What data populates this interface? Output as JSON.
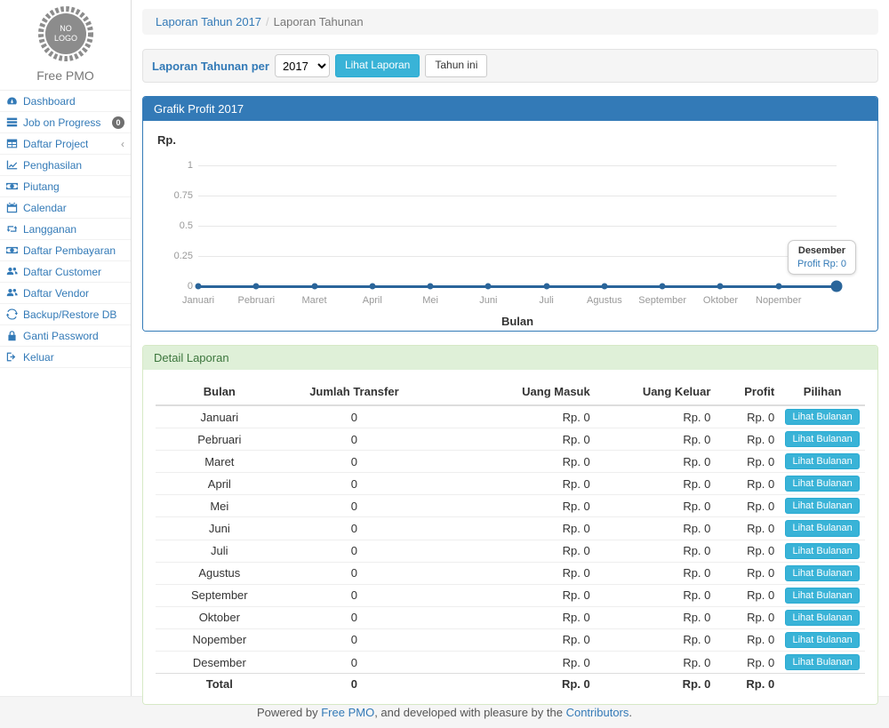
{
  "colors": {
    "accent": "#337ab7",
    "info_button": "#39b3d7",
    "chart_line": "#2a659a",
    "success_bg": "#dff0d8",
    "success_text": "#3c763d"
  },
  "sidebar": {
    "logo_line1": "NO",
    "logo_line2": "LOGO",
    "brand": "Free PMO",
    "items": [
      {
        "id": "dashboard",
        "label": "Dashboard",
        "icon": "dashboard-icon"
      },
      {
        "id": "job-on-progress",
        "label": "Job on Progress",
        "icon": "tasks-icon",
        "badge": "0"
      },
      {
        "id": "daftar-project",
        "label": "Daftar Project",
        "icon": "table-icon",
        "caret": "‹"
      },
      {
        "id": "penghasilan",
        "label": "Penghasilan",
        "icon": "line-chart-icon"
      },
      {
        "id": "piutang",
        "label": "Piutang",
        "icon": "money-icon"
      },
      {
        "id": "calendar",
        "label": "Calendar",
        "icon": "calendar-icon"
      },
      {
        "id": "langganan",
        "label": "Langganan",
        "icon": "retweet-icon"
      },
      {
        "id": "daftar-pembayaran",
        "label": "Daftar Pembayaran",
        "icon": "money-icon"
      },
      {
        "id": "daftar-customer",
        "label": "Daftar Customer",
        "icon": "users-icon"
      },
      {
        "id": "daftar-vendor",
        "label": "Daftar Vendor",
        "icon": "users-icon"
      },
      {
        "id": "backup-restore-db",
        "label": "Backup/Restore DB",
        "icon": "refresh-icon"
      },
      {
        "id": "ganti-password",
        "label": "Ganti Password",
        "icon": "lock-icon"
      },
      {
        "id": "keluar",
        "label": "Keluar",
        "icon": "sign-out-icon"
      }
    ]
  },
  "breadcrumb": {
    "link": "Laporan Tahun 2017",
    "separator": "/",
    "current": "Laporan Tahunan"
  },
  "filter_bar": {
    "label": "Laporan Tahunan per",
    "year_value": "2017",
    "submit_label": "Lihat Laporan",
    "this_year_label": "Tahun ini"
  },
  "chart_panel": {
    "title": "Grafik Profit 2017"
  },
  "chart_data": {
    "type": "line",
    "title": "Grafik Profit 2017",
    "xlabel": "Bulan",
    "ylabel": "Rp.",
    "categories": [
      "Januari",
      "Pebruari",
      "Maret",
      "April",
      "Mei",
      "Juni",
      "Juli",
      "Agustus",
      "September",
      "Oktober",
      "Nopember",
      "Desember"
    ],
    "x_labels_shown": [
      "Januari",
      "Pebruari",
      "Maret",
      "April",
      "Mei",
      "Juni",
      "Juli",
      "Agustus",
      "September",
      "Oktober",
      "Nopember"
    ],
    "series": [
      {
        "name": "Profit",
        "values": [
          0,
          0,
          0,
          0,
          0,
          0,
          0,
          0,
          0,
          0,
          0,
          0
        ]
      }
    ],
    "ylim": [
      0,
      1
    ],
    "yticks": [
      1,
      0.75,
      0.5,
      0.25,
      0
    ],
    "grid": true,
    "legend": false,
    "tooltip": {
      "title": "Desember",
      "value": "Profit Rp: 0"
    }
  },
  "detail_panel": {
    "title": "Detail Laporan",
    "table": {
      "headers": [
        "Bulan",
        "Jumlah Transfer",
        "Uang Masuk",
        "Uang Keluar",
        "Profit",
        "Pilihan"
      ],
      "action_label": "Lihat Bulanan",
      "rows": [
        {
          "bulan": "Januari",
          "jumlah_transfer": "0",
          "uang_masuk": "Rp. 0",
          "uang_keluar": "Rp. 0",
          "profit": "Rp. 0"
        },
        {
          "bulan": "Pebruari",
          "jumlah_transfer": "0",
          "uang_masuk": "Rp. 0",
          "uang_keluar": "Rp. 0",
          "profit": "Rp. 0"
        },
        {
          "bulan": "Maret",
          "jumlah_transfer": "0",
          "uang_masuk": "Rp. 0",
          "uang_keluar": "Rp. 0",
          "profit": "Rp. 0"
        },
        {
          "bulan": "April",
          "jumlah_transfer": "0",
          "uang_masuk": "Rp. 0",
          "uang_keluar": "Rp. 0",
          "profit": "Rp. 0"
        },
        {
          "bulan": "Mei",
          "jumlah_transfer": "0",
          "uang_masuk": "Rp. 0",
          "uang_keluar": "Rp. 0",
          "profit": "Rp. 0"
        },
        {
          "bulan": "Juni",
          "jumlah_transfer": "0",
          "uang_masuk": "Rp. 0",
          "uang_keluar": "Rp. 0",
          "profit": "Rp. 0"
        },
        {
          "bulan": "Juli",
          "jumlah_transfer": "0",
          "uang_masuk": "Rp. 0",
          "uang_keluar": "Rp. 0",
          "profit": "Rp. 0"
        },
        {
          "bulan": "Agustus",
          "jumlah_transfer": "0",
          "uang_masuk": "Rp. 0",
          "uang_keluar": "Rp. 0",
          "profit": "Rp. 0"
        },
        {
          "bulan": "September",
          "jumlah_transfer": "0",
          "uang_masuk": "Rp. 0",
          "uang_keluar": "Rp. 0",
          "profit": "Rp. 0"
        },
        {
          "bulan": "Oktober",
          "jumlah_transfer": "0",
          "uang_masuk": "Rp. 0",
          "uang_keluar": "Rp. 0",
          "profit": "Rp. 0"
        },
        {
          "bulan": "Nopember",
          "jumlah_transfer": "0",
          "uang_masuk": "Rp. 0",
          "uang_keluar": "Rp. 0",
          "profit": "Rp. 0"
        },
        {
          "bulan": "Desember",
          "jumlah_transfer": "0",
          "uang_masuk": "Rp. 0",
          "uang_keluar": "Rp. 0",
          "profit": "Rp. 0"
        }
      ],
      "total_row": {
        "bulan": "Total",
        "jumlah_transfer": "0",
        "uang_masuk": "Rp. 0",
        "uang_keluar": "Rp. 0",
        "profit": "Rp. 0"
      }
    }
  },
  "footer": {
    "prefix": "Powered by ",
    "link1": "Free PMO",
    "middle": ", and developed with pleasure by the ",
    "link2": "Contributors",
    "suffix": "."
  }
}
